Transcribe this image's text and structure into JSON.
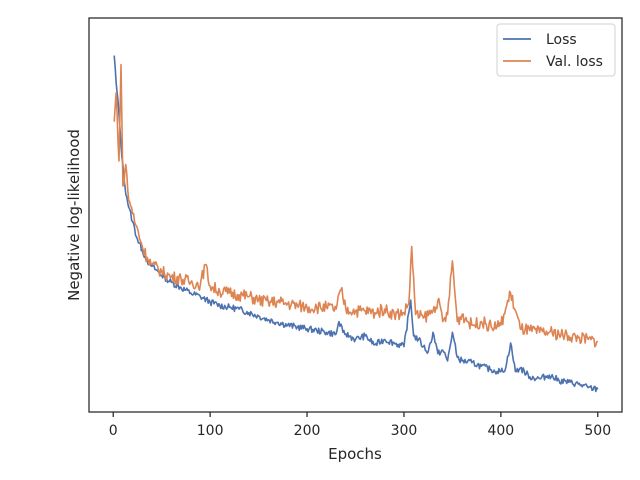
{
  "chart_data": {
    "type": "line",
    "xlabel": "Epochs",
    "ylabel": "Negative log-likelihood",
    "xlim": [
      -25,
      525
    ],
    "ylim": [
      0,
      1
    ],
    "x_ticks": [
      0,
      100,
      200,
      300,
      400,
      500
    ],
    "y_tick_labels_shown": false,
    "legend": {
      "position": "top-right"
    },
    "colors": {
      "Loss": "#4c72b0",
      "Val. loss": "#dd8452"
    },
    "series": [
      {
        "name": "Loss",
        "x": [
          1,
          3,
          6,
          9,
          12,
          16,
          20,
          25,
          30,
          35,
          40,
          50,
          60,
          70,
          80,
          90,
          100,
          110,
          120,
          130,
          140,
          150,
          160,
          170,
          180,
          190,
          200,
          210,
          220,
          230,
          233,
          237,
          240,
          250,
          260,
          270,
          280,
          290,
          300,
          307,
          310,
          315,
          320,
          325,
          330,
          335,
          340,
          345,
          350,
          355,
          360,
          370,
          380,
          390,
          400,
          405,
          410,
          415,
          420,
          430,
          440,
          450,
          460,
          470,
          480,
          490,
          500
        ],
        "y": [
          0.945,
          0.87,
          0.78,
          0.66,
          0.58,
          0.52,
          0.48,
          0.43,
          0.4,
          0.37,
          0.355,
          0.33,
          0.31,
          0.295,
          0.28,
          0.27,
          0.255,
          0.245,
          0.24,
          0.235,
          0.225,
          0.215,
          0.205,
          0.198,
          0.19,
          0.185,
          0.18,
          0.175,
          0.17,
          0.165,
          0.2,
          0.17,
          0.165,
          0.15,
          0.16,
          0.135,
          0.15,
          0.14,
          0.13,
          0.26,
          0.16,
          0.15,
          0.13,
          0.115,
          0.17,
          0.11,
          0.12,
          0.09,
          0.17,
          0.1,
          0.09,
          0.085,
          0.075,
          0.065,
          0.06,
          0.07,
          0.14,
          0.06,
          0.07,
          0.045,
          0.04,
          0.05,
          0.035,
          0.03,
          0.025,
          0.015,
          0.01
        ]
      },
      {
        "name": "Val. loss",
        "x": [
          1,
          3,
          6,
          8,
          10,
          13,
          16,
          19,
          22,
          26,
          30,
          35,
          40,
          50,
          60,
          70,
          80,
          90,
          95,
          100,
          110,
          120,
          130,
          140,
          150,
          160,
          170,
          180,
          190,
          200,
          210,
          220,
          230,
          235,
          240,
          250,
          260,
          270,
          280,
          290,
          300,
          305,
          308,
          312,
          320,
          330,
          335,
          340,
          345,
          350,
          355,
          360,
          370,
          380,
          390,
          400,
          410,
          420,
          430,
          440,
          450,
          460,
          470,
          480,
          490,
          500
        ],
        "y": [
          0.76,
          0.84,
          0.65,
          0.92,
          0.58,
          0.64,
          0.54,
          0.52,
          0.48,
          0.45,
          0.41,
          0.38,
          0.36,
          0.34,
          0.325,
          0.32,
          0.31,
          0.305,
          0.36,
          0.3,
          0.285,
          0.28,
          0.275,
          0.27,
          0.26,
          0.255,
          0.255,
          0.25,
          0.245,
          0.24,
          0.24,
          0.24,
          0.235,
          0.29,
          0.235,
          0.23,
          0.23,
          0.225,
          0.235,
          0.22,
          0.225,
          0.25,
          0.41,
          0.22,
          0.21,
          0.23,
          0.26,
          0.2,
          0.22,
          0.37,
          0.2,
          0.22,
          0.19,
          0.2,
          0.185,
          0.19,
          0.28,
          0.18,
          0.175,
          0.17,
          0.17,
          0.165,
          0.16,
          0.155,
          0.15,
          0.145
        ]
      }
    ]
  }
}
